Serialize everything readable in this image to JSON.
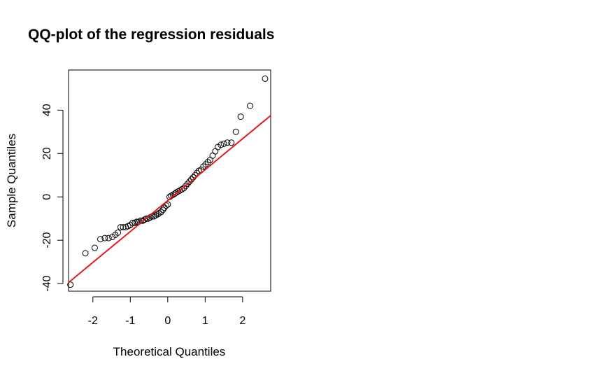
{
  "chart_data": {
    "type": "scatter",
    "title": "QQ-plot of the regression residuals",
    "xlabel": "Theoretical Quantiles",
    "ylabel": "Sample Quantiles",
    "xlim": [
      -2.65,
      2.75
    ],
    "ylim": [
      -43.5,
      58.5
    ],
    "xticks": [
      -2,
      -1,
      0,
      1,
      2
    ],
    "xtick_labels": [
      "-2",
      "-1",
      "0",
      "1",
      "2"
    ],
    "yticks": [
      -40,
      -20,
      0,
      20,
      40
    ],
    "ytick_labels": [
      "-40",
      "-20",
      "0",
      "20",
      "40"
    ],
    "grid": false,
    "line": {
      "x": [
        -2.65,
        2.75
      ],
      "y": [
        -39.5,
        37.5
      ],
      "color": "#e41a1c"
    },
    "point_color": "#000000",
    "points": [
      [
        -2.6,
        -40.5
      ],
      [
        -2.2,
        -26
      ],
      [
        -1.95,
        -23.5
      ],
      [
        -1.8,
        -19.5
      ],
      [
        -1.68,
        -19
      ],
      [
        -1.58,
        -19
      ],
      [
        -1.48,
        -18.5
      ],
      [
        -1.4,
        -17.5
      ],
      [
        -1.33,
        -16.5
      ],
      [
        -1.26,
        -14
      ],
      [
        -1.19,
        -14
      ],
      [
        -1.12,
        -14
      ],
      [
        -1.06,
        -13.5
      ],
      [
        -1.0,
        -13
      ],
      [
        -0.94,
        -12
      ],
      [
        -0.88,
        -12
      ],
      [
        -0.83,
        -11.5
      ],
      [
        -0.78,
        -11.5
      ],
      [
        -0.72,
        -11
      ],
      [
        -0.67,
        -11
      ],
      [
        -0.62,
        -10.5
      ],
      [
        -0.57,
        -10
      ],
      [
        -0.52,
        -10
      ],
      [
        -0.47,
        -9.5
      ],
      [
        -0.42,
        -9
      ],
      [
        -0.37,
        -9
      ],
      [
        -0.32,
        -8.5
      ],
      [
        -0.27,
        -8
      ],
      [
        -0.23,
        -7.5
      ],
      [
        -0.18,
        -7
      ],
      [
        -0.13,
        -6
      ],
      [
        -0.09,
        -5
      ],
      [
        -0.04,
        -4
      ],
      [
        0.0,
        -3.5
      ],
      [
        0.05,
        0
      ],
      [
        0.09,
        0.5
      ],
      [
        0.14,
        1
      ],
      [
        0.19,
        1.5
      ],
      [
        0.23,
        2
      ],
      [
        0.28,
        2.5
      ],
      [
        0.33,
        3
      ],
      [
        0.38,
        3.5
      ],
      [
        0.43,
        4
      ],
      [
        0.48,
        5
      ],
      [
        0.53,
        6
      ],
      [
        0.58,
        7
      ],
      [
        0.63,
        8
      ],
      [
        0.68,
        9
      ],
      [
        0.73,
        10
      ],
      [
        0.78,
        11
      ],
      [
        0.83,
        12
      ],
      [
        0.89,
        12.5
      ],
      [
        0.95,
        14
      ],
      [
        1.01,
        15
      ],
      [
        1.07,
        16
      ],
      [
        1.13,
        17
      ],
      [
        1.2,
        19
      ],
      [
        1.27,
        21
      ],
      [
        1.34,
        23
      ],
      [
        1.42,
        24
      ],
      [
        1.5,
        24.5
      ],
      [
        1.59,
        25
      ],
      [
        1.7,
        25
      ],
      [
        1.82,
        30
      ],
      [
        1.95,
        37
      ],
      [
        2.2,
        42
      ],
      [
        2.6,
        54.5
      ]
    ]
  }
}
